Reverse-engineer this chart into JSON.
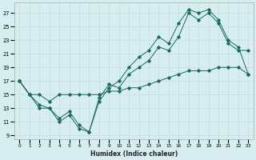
{
  "xlabel": "Humidex (Indice chaleur)",
  "ylabel": "",
  "bg_color": "#d6eef0",
  "grid_color": "#c8e0e4",
  "line_color": "#1a6b5a",
  "xlim": [
    -0.5,
    23.5
  ],
  "ylim": [
    8.5,
    28.5
  ],
  "xticks": [
    0,
    1,
    2,
    3,
    4,
    5,
    6,
    7,
    8,
    9,
    10,
    11,
    12,
    13,
    14,
    15,
    16,
    17,
    18,
    19,
    20,
    21,
    22,
    23
  ],
  "yticks": [
    9,
    11,
    13,
    15,
    17,
    19,
    21,
    23,
    25,
    27
  ],
  "line1_x": [
    0,
    1,
    2,
    3,
    4,
    5,
    6,
    7,
    8,
    9,
    10,
    11,
    12,
    13,
    14,
    15,
    16,
    17,
    18,
    19,
    20,
    21,
    22,
    23
  ],
  "line1_y": [
    17,
    15,
    13,
    13,
    11,
    12,
    10,
    9.5,
    14.5,
    16.5,
    16,
    18,
    19,
    20,
    22,
    21.5,
    23.5,
    27,
    26,
    27,
    25.5,
    22.5,
    21.5,
    21.5
  ],
  "line2_x": [
    0,
    1,
    2,
    3,
    4,
    5,
    6,
    7,
    8,
    9,
    10,
    11,
    12,
    13,
    14,
    15,
    16,
    17,
    18,
    19,
    20,
    21,
    22,
    23
  ],
  "line2_y": [
    17,
    15,
    13.5,
    13,
    11.5,
    12.5,
    10.5,
    9.5,
    14,
    16,
    17,
    19,
    20.5,
    21.5,
    23.5,
    22.5,
    25.5,
    27.5,
    27,
    27.5,
    26,
    23,
    22,
    18
  ],
  "line3_x": [
    0,
    1,
    2,
    3,
    4,
    5,
    6,
    7,
    8,
    9,
    10,
    11,
    12,
    13,
    14,
    15,
    16,
    17,
    18,
    19,
    20,
    21,
    22,
    23
  ],
  "line3_y": [
    17,
    15,
    15,
    14,
    15,
    15,
    15,
    15,
    15,
    15.5,
    15.5,
    16,
    16,
    16.5,
    17,
    17.5,
    18,
    18.5,
    18.5,
    18.5,
    19,
    19,
    19,
    18
  ]
}
